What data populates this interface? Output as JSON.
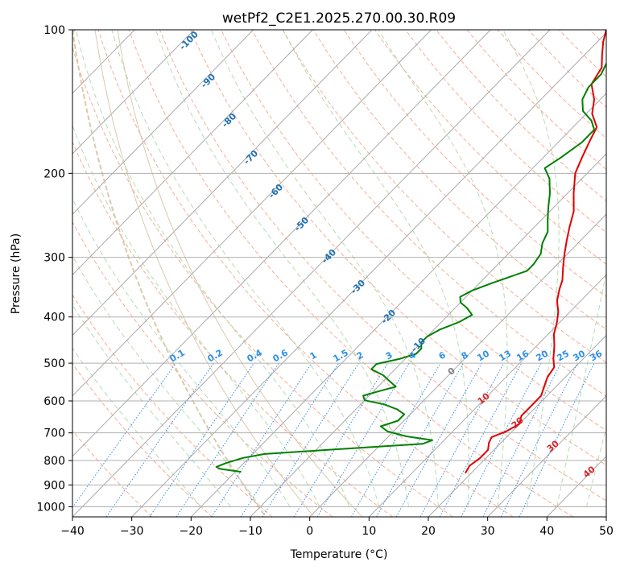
{
  "chart_data": {
    "type": "line",
    "title": "wetPf2_C2E1.2025.270.00.30.R09",
    "xlabel": "Temperature (°C)",
    "ylabel": "Pressure (hPa)",
    "xlim": [
      -40,
      50
    ],
    "ylim": [
      1050,
      100
    ],
    "y_scale": "log",
    "x_ticks": [
      "−40",
      "−30",
      "−20",
      "−10",
      "0",
      "10",
      "20",
      "30",
      "40",
      "50"
    ],
    "y_ticks": [
      "100",
      "200",
      "300",
      "400",
      "500",
      "600",
      "700",
      "800",
      "900",
      "1000"
    ],
    "grid": true,
    "skew": true,
    "series": [
      {
        "color": "#e00000",
        "points": [
          [
            19,
            850
          ],
          [
            18.5,
            820
          ],
          [
            19,
            790
          ],
          [
            19,
            760
          ],
          [
            18,
            735
          ],
          [
            17.5,
            715
          ],
          [
            19,
            695
          ],
          [
            20,
            670
          ],
          [
            19,
            645
          ],
          [
            19,
            615
          ],
          [
            19,
            585
          ],
          [
            18,
            560
          ],
          [
            17,
            535
          ],
          [
            16.5,
            510
          ],
          [
            15,
            490
          ],
          [
            13,
            460
          ],
          [
            11,
            435
          ],
          [
            9.5,
            410
          ],
          [
            8,
            390
          ],
          [
            6,
            370
          ],
          [
            4.5,
            350
          ],
          [
            3.5,
            335
          ],
          [
            1.5,
            315
          ],
          [
            -0.5,
            295
          ],
          [
            -2.5,
            275
          ],
          [
            -4,
            260
          ],
          [
            -6,
            240
          ],
          [
            -9,
            220
          ],
          [
            -12,
            200
          ],
          [
            -13.5,
            185
          ],
          [
            -15,
            170
          ],
          [
            -16,
            160
          ],
          [
            -19,
            150
          ],
          [
            -21,
            140
          ],
          [
            -24,
            130
          ],
          [
            -25,
            120
          ],
          [
            -27,
            113
          ],
          [
            -29,
            106
          ],
          [
            -30.5,
            100
          ]
        ]
      },
      {
        "color": "#008000",
        "points": [
          [
            -19,
            845
          ],
          [
            -23,
            833
          ],
          [
            -24,
            825
          ],
          [
            -23,
            810
          ],
          [
            -21,
            790
          ],
          [
            -18,
            775
          ],
          [
            -8,
            760
          ],
          [
            0,
            748
          ],
          [
            7,
            738
          ],
          [
            8,
            725
          ],
          [
            3,
            712
          ],
          [
            -1,
            695
          ],
          [
            -3,
            678
          ],
          [
            -1,
            660
          ],
          [
            -1,
            640
          ],
          [
            -3,
            625
          ],
          [
            -6,
            610
          ],
          [
            -10,
            598
          ],
          [
            -11,
            585
          ],
          [
            -9,
            572
          ],
          [
            -7,
            560
          ],
          [
            -9,
            545
          ],
          [
            -11,
            530
          ],
          [
            -14,
            515
          ],
          [
            -14,
            502
          ],
          [
            -11,
            490
          ],
          [
            -9,
            478
          ],
          [
            -9,
            466
          ],
          [
            -10,
            452
          ],
          [
            -10,
            440
          ],
          [
            -9,
            425
          ],
          [
            -7,
            410
          ],
          [
            -6,
            396
          ],
          [
            -8,
            383
          ],
          [
            -10,
            373
          ],
          [
            -11,
            363
          ],
          [
            -10,
            352
          ],
          [
            -8,
            340
          ],
          [
            -6,
            330
          ],
          [
            -4,
            320
          ],
          [
            -4,
            310
          ],
          [
            -4.5,
            295
          ],
          [
            -6,
            280
          ],
          [
            -7,
            265
          ],
          [
            -9,
            250
          ],
          [
            -11,
            235
          ],
          [
            -13,
            220
          ],
          [
            -15.5,
            205
          ],
          [
            -18,
            195
          ],
          [
            -17,
            185
          ],
          [
            -16,
            172
          ],
          [
            -16,
            162
          ],
          [
            -18,
            155
          ],
          [
            -21,
            148
          ],
          [
            -23,
            140
          ],
          [
            -24,
            132
          ],
          [
            -24,
            124
          ],
          [
            -25,
            117
          ],
          [
            -27,
            110
          ],
          [
            -29,
            104
          ],
          [
            -30.5,
            100
          ]
        ]
      }
    ],
    "isotherm_labels": [
      "-100",
      "-90",
      "-80",
      "-70",
      "-60",
      "-50",
      "-40",
      "-30",
      "-20",
      "-10"
    ],
    "mixing_ratio_labels": [
      "0.1",
      "0.2",
      "0.4",
      "0.6",
      "1",
      "1.5",
      "2",
      "3",
      "4",
      "6",
      "8",
      "10",
      "13",
      "16",
      "20",
      "25",
      "30",
      "36"
    ],
    "theta_e_labels": [
      "0",
      "10",
      "20",
      "30",
      "40"
    ],
    "colors": {
      "temperature_line": "#e00000",
      "dewpoint_line": "#008000",
      "isotherm_label": "#1f6fb4",
      "mixing_ratio_label": "#2f8fe6",
      "theta_e_label": "#d62728",
      "zero_label": "#7f7f7f"
    }
  }
}
